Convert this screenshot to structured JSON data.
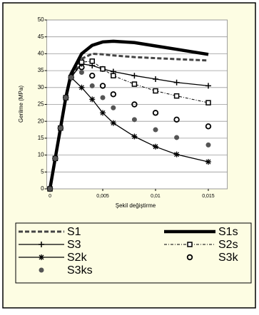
{
  "chart_data": {
    "type": "line",
    "y_label": "Gerilme (MPa)",
    "x_label": "Şekil değiştirme",
    "x": [
      0,
      0.0005,
      0.001,
      0.0015,
      0.002,
      0.003,
      0.004,
      0.005,
      0.006,
      0.008,
      0.01,
      0.012,
      0.015
    ],
    "xlim": [
      -0.0003,
      0.0168
    ],
    "xticks": [
      0,
      {
        "value": 0.005,
        "label": "0,005"
      },
      {
        "value": 0.01,
        "label": "0,01"
      },
      {
        "value": 0.015,
        "label": "0,015"
      }
    ],
    "ylim": [
      0,
      50
    ],
    "yticks": [
      0,
      5,
      10,
      15,
      20,
      25,
      30,
      35,
      40,
      45,
      50
    ],
    "grid": true,
    "series": [
      {
        "name": "S1",
        "color": "#444444",
        "style": "dash",
        "marker": "none",
        "values": [
          0,
          9,
          18,
          27,
          33,
          38.5,
          40,
          39.8,
          39.5,
          39,
          38.7,
          38.4,
          38
        ]
      },
      {
        "name": "S1s",
        "color": "#000000",
        "style": "thick",
        "marker": "none",
        "values": [
          0,
          9,
          18,
          27,
          34,
          40,
          42.5,
          43.5,
          43.7,
          43.3,
          42.3,
          41.3,
          39.8
        ]
      },
      {
        "name": "S3",
        "color": "#000000",
        "style": "solid",
        "marker": "plus",
        "values": [
          0,
          9,
          18,
          27,
          33,
          37,
          36.5,
          35.5,
          34.7,
          33.5,
          32.5,
          31.5,
          30.5
        ]
      },
      {
        "name": "S2s",
        "color": "#000000",
        "style": "dashdot",
        "marker": "square",
        "values": [
          0,
          9,
          18,
          27,
          33,
          37.5,
          37.8,
          35.5,
          33.5,
          31,
          29,
          27.5,
          25.5
        ]
      },
      {
        "name": "S2k",
        "color": "#000000",
        "style": "solid",
        "marker": "star",
        "values": [
          0,
          9,
          18,
          27,
          33,
          30,
          26.5,
          22.5,
          19.5,
          15.5,
          12.5,
          10.2,
          8
        ]
      },
      {
        "name": "S3k",
        "color": "#000000",
        "style": "none",
        "marker": "circle",
        "values": [
          0,
          9,
          18,
          27,
          33,
          36,
          33.5,
          30.5,
          28,
          25,
          22.5,
          20.5,
          18.5
        ]
      },
      {
        "name": "S3ks",
        "color": "#555555",
        "style": "none",
        "marker": "dot",
        "values": [
          0,
          9,
          18,
          27,
          33,
          34.5,
          30.5,
          27,
          24,
          20.5,
          17.5,
          15.2,
          13
        ]
      }
    ]
  }
}
